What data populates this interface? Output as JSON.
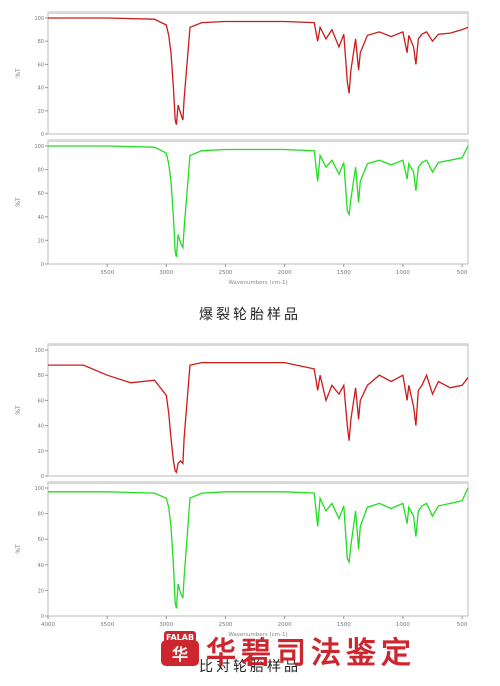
{
  "figures": [
    {
      "caption": "爆裂轮胎样品",
      "panels": [
        {
          "color": "#cc1a1a",
          "legend": "",
          "yticks": [
            0,
            20,
            40,
            60,
            80,
            100
          ],
          "ylabel": "%T"
        },
        {
          "color": "#22dd22",
          "legend": "",
          "yticks": [
            0,
            20,
            40,
            60,
            80,
            100
          ],
          "ylabel": "%T"
        }
      ],
      "xticks": [
        3500,
        3000,
        2500,
        2000,
        1500,
        1000,
        500
      ],
      "xlabel": "Wavenumbers (cm-1)"
    },
    {
      "caption": "比对轮胎样品",
      "panels": [
        {
          "color": "#cc1a1a",
          "legend": "",
          "yticks": [
            0,
            20,
            40,
            60,
            80,
            100
          ],
          "ylabel": "%T"
        },
        {
          "color": "#22dd22",
          "legend": "",
          "yticks": [
            0,
            20,
            40,
            60,
            80,
            100
          ],
          "ylabel": "%T"
        }
      ],
      "xticks": [
        4000,
        3500,
        3000,
        2500,
        2000,
        1500,
        1000,
        500
      ],
      "xlabel": "Wavenumbers (cm-1)"
    }
  ],
  "chart_data": [
    {
      "type": "line",
      "xlabel": "Wavenumbers (cm-1)",
      "ylabel": "%T",
      "xlim": [
        4000,
        450
      ],
      "ylim": [
        0,
        100
      ],
      "series": [
        {
          "color": "#cc1a1a",
          "x": [
            4000,
            3500,
            3100,
            3000,
            2980,
            2960,
            2940,
            2925,
            2915,
            2900,
            2880,
            2860,
            2850,
            2800,
            2700,
            2500,
            2000,
            1750,
            1720,
            1700,
            1650,
            1600,
            1540,
            1500,
            1470,
            1455,
            1440,
            1400,
            1375,
            1360,
            1300,
            1200,
            1100,
            1000,
            965,
            950,
            910,
            890,
            870,
            840,
            800,
            750,
            700,
            600,
            500,
            450
          ],
          "y": [
            100,
            100,
            99,
            94,
            85,
            70,
            40,
            12,
            8,
            25,
            18,
            12,
            30,
            92,
            96,
            97,
            97,
            96,
            80,
            92,
            82,
            90,
            75,
            86,
            45,
            35,
            55,
            82,
            55,
            70,
            85,
            88,
            84,
            88,
            70,
            85,
            75,
            60,
            82,
            86,
            88,
            80,
            86,
            87,
            90,
            92
          ]
        },
        {
          "color": "#22dd22",
          "x": [
            4000,
            3500,
            3100,
            3000,
            2980,
            2960,
            2940,
            2925,
            2915,
            2900,
            2880,
            2860,
            2850,
            2800,
            2700,
            2500,
            2000,
            1750,
            1720,
            1700,
            1650,
            1600,
            1540,
            1500,
            1470,
            1455,
            1440,
            1400,
            1375,
            1360,
            1300,
            1200,
            1100,
            1000,
            965,
            950,
            910,
            890,
            870,
            840,
            800,
            750,
            700,
            600,
            500,
            450
          ],
          "y": [
            100,
            100,
            99,
            94,
            85,
            70,
            40,
            10,
            6,
            25,
            18,
            14,
            30,
            92,
            96,
            97,
            97,
            96,
            70,
            92,
            82,
            88,
            76,
            86,
            45,
            42,
            55,
            82,
            52,
            70,
            85,
            88,
            84,
            88,
            72,
            85,
            78,
            62,
            82,
            86,
            88,
            78,
            86,
            88,
            90,
            100
          ]
        }
      ]
    },
    {
      "type": "line",
      "xlabel": "Wavenumbers (cm-1)",
      "ylabel": "%T",
      "xlim": [
        4000,
        450
      ],
      "ylim": [
        0,
        100
      ],
      "series": [
        {
          "color": "#cc1a1a",
          "x": [
            4000,
            3700,
            3500,
            3300,
            3100,
            3000,
            2980,
            2960,
            2940,
            2925,
            2915,
            2900,
            2880,
            2860,
            2850,
            2800,
            2700,
            2500,
            2000,
            1750,
            1720,
            1700,
            1650,
            1600,
            1540,
            1500,
            1470,
            1455,
            1440,
            1400,
            1375,
            1360,
            1300,
            1200,
            1100,
            1000,
            965,
            950,
            910,
            890,
            870,
            840,
            800,
            750,
            700,
            600,
            500,
            450
          ],
          "y": [
            88,
            88,
            80,
            74,
            76,
            64,
            50,
            30,
            12,
            4,
            3,
            10,
            12,
            10,
            30,
            88,
            90,
            90,
            90,
            85,
            68,
            80,
            60,
            72,
            65,
            72,
            40,
            28,
            45,
            70,
            45,
            60,
            72,
            80,
            75,
            80,
            60,
            72,
            55,
            40,
            68,
            72,
            80,
            65,
            75,
            70,
            72,
            78
          ]
        },
        {
          "color": "#22dd22",
          "x": [
            4000,
            3500,
            3100,
            3000,
            2980,
            2960,
            2940,
            2925,
            2915,
            2900,
            2880,
            2860,
            2850,
            2800,
            2700,
            2500,
            2000,
            1750,
            1720,
            1700,
            1650,
            1600,
            1540,
            1500,
            1470,
            1455,
            1440,
            1400,
            1375,
            1360,
            1300,
            1200,
            1100,
            1000,
            965,
            950,
            910,
            890,
            870,
            840,
            800,
            750,
            700,
            600,
            500,
            450
          ],
          "y": [
            97,
            97,
            96,
            92,
            85,
            70,
            40,
            10,
            6,
            25,
            18,
            14,
            30,
            92,
            96,
            97,
            97,
            96,
            70,
            92,
            82,
            88,
            76,
            86,
            45,
            42,
            55,
            82,
            52,
            70,
            85,
            88,
            84,
            88,
            72,
            85,
            78,
            62,
            82,
            86,
            88,
            78,
            86,
            88,
            90,
            100
          ]
        }
      ]
    }
  ]
}
